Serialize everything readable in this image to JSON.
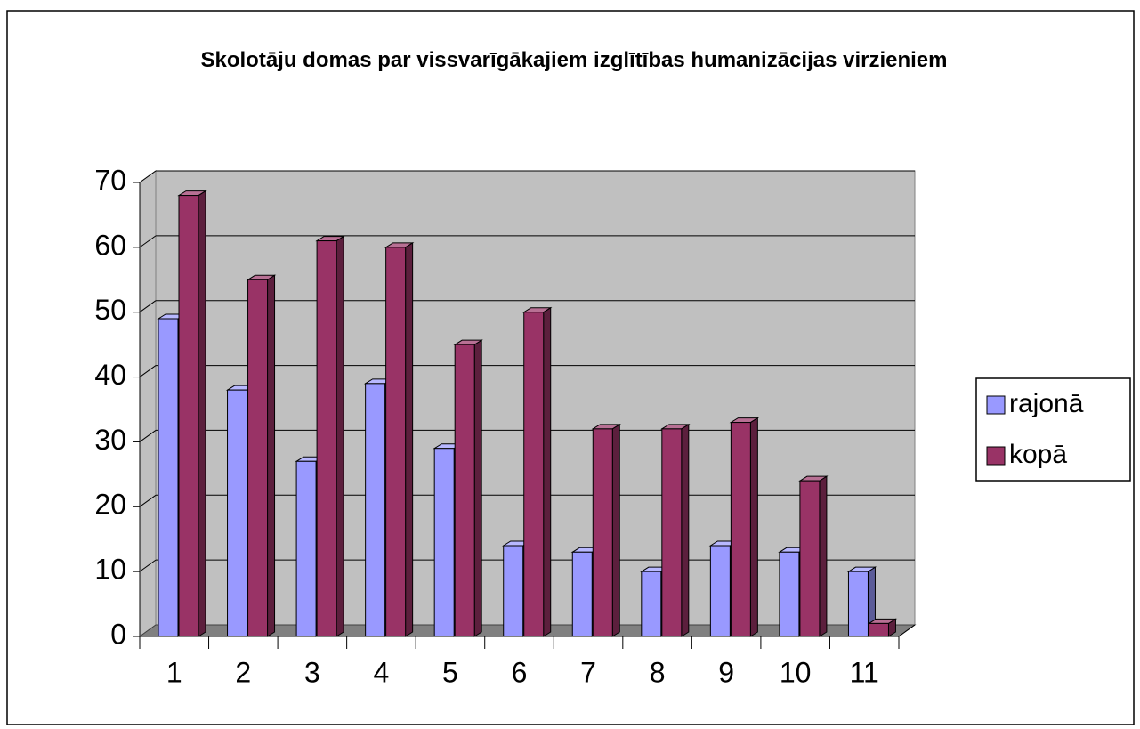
{
  "chart_data": {
    "type": "bar3d",
    "title": "Skolotāju domas par vissvarīgākajiem izglītības humanizācijas virzieniem",
    "categories": [
      "1",
      "2",
      "3",
      "4",
      "5",
      "6",
      "7",
      "8",
      "9",
      "10",
      "11"
    ],
    "series": [
      {
        "name": "rajonā",
        "color": "#9999ff",
        "values": [
          49,
          38,
          27,
          39,
          29,
          14,
          13,
          10,
          14,
          13,
          10
        ]
      },
      {
        "name": "kopā",
        "color": "#993366",
        "values": [
          68,
          55,
          61,
          60,
          45,
          50,
          32,
          32,
          33,
          24,
          2
        ]
      }
    ],
    "ylim": [
      0,
      70
    ],
    "yticks": [
      0,
      10,
      20,
      30,
      40,
      50,
      60,
      70
    ],
    "grid": true,
    "legend": "right"
  }
}
